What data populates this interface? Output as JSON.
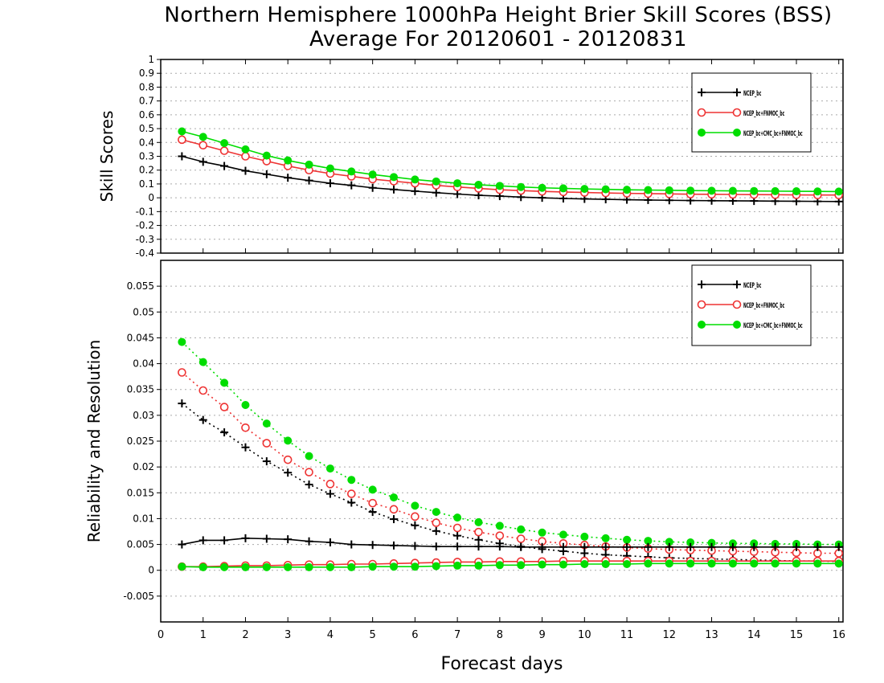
{
  "title_line1": "Northern Hemisphere 1000hPa Height Brier Skill Scores (BSS)",
  "title_line2": "Average For 20120601 - 20120831",
  "colors": {
    "ens1": "#000000",
    "ens2": "#ee3333",
    "ens3": "#00dd00",
    "grid": "#aaaaaa",
    "frame": "#000000"
  },
  "chart_data": [
    {
      "type": "line",
      "ylabel": "Skill Scores",
      "ylim": [
        -0.4,
        1
      ],
      "yticks": [
        "-0.4",
        "-0.3",
        "-0.2",
        "-0.1",
        "0",
        "0.1",
        "0.2",
        "0.3",
        "0.4",
        "0.5",
        "0.6",
        "0.7",
        "0.8",
        "0.9",
        "1"
      ],
      "xlim": [
        0,
        16.1
      ],
      "grid": true,
      "legend_position": "top-right",
      "legend_labels": [
        "NCEP_bc",
        "NCEP_bc+FNMOC_bc",
        "NCEP_bc+CMC_bc+FNMOC_bc"
      ],
      "x": [
        0.5,
        1,
        1.5,
        2,
        2.5,
        3,
        3.5,
        4,
        4.5,
        5,
        5.5,
        6,
        6.5,
        7,
        7.5,
        8,
        8.5,
        9,
        9.5,
        10,
        10.5,
        11,
        11.5,
        12,
        12.5,
        13,
        13.5,
        14,
        14.5,
        15,
        15.5,
        16
      ],
      "series": [
        {
          "values": [
            0.3,
            0.26,
            0.23,
            0.195,
            0.17,
            0.145,
            0.125,
            0.105,
            0.09,
            0.072,
            0.06,
            0.048,
            0.037,
            0.027,
            0.018,
            0.012,
            0.005,
            0.0,
            -0.005,
            -0.008,
            -0.011,
            -0.014,
            -0.016,
            -0.018,
            -0.02,
            -0.021,
            -0.022,
            -0.023,
            -0.024,
            -0.025,
            -0.026,
            -0.027
          ]
        },
        {
          "values": [
            0.42,
            0.38,
            0.34,
            0.3,
            0.265,
            0.23,
            0.2,
            0.175,
            0.155,
            0.135,
            0.12,
            0.105,
            0.09,
            0.078,
            0.068,
            0.058,
            0.052,
            0.046,
            0.042,
            0.038,
            0.035,
            0.032,
            0.03,
            0.028,
            0.026,
            0.025,
            0.024,
            0.023,
            0.022,
            0.021,
            0.02,
            0.02
          ]
        },
        {
          "values": [
            0.48,
            0.44,
            0.395,
            0.35,
            0.305,
            0.27,
            0.24,
            0.212,
            0.19,
            0.168,
            0.15,
            0.132,
            0.118,
            0.105,
            0.094,
            0.086,
            0.078,
            0.072,
            0.068,
            0.064,
            0.061,
            0.058,
            0.056,
            0.054,
            0.052,
            0.051,
            0.05,
            0.049,
            0.048,
            0.047,
            0.046,
            0.045
          ]
        }
      ]
    },
    {
      "type": "line",
      "ylabel": "Reliability and Resolution",
      "xlabel": "Forecast days",
      "ylim": [
        -0.01,
        0.06
      ],
      "yticks": [
        "-0.005",
        "0",
        "0.005",
        "0.01",
        "0.015",
        "0.02",
        "0.025",
        "0.03",
        "0.035",
        "0.04",
        "0.045",
        "0.05",
        "0.055"
      ],
      "xlim": [
        0,
        16.1
      ],
      "xticks": [
        "0",
        "1",
        "2",
        "3",
        "4",
        "5",
        "6",
        "7",
        "8",
        "9",
        "10",
        "11",
        "12",
        "13",
        "14",
        "15",
        "16"
      ],
      "grid": true,
      "legend_position": "top-right",
      "legend_labels": [
        "NCEP_bc",
        "NCEP_bc+FNMOC_bc",
        "NCEP_bc+CMC_bc+FNMOC_bc"
      ],
      "x": [
        0.5,
        1,
        1.5,
        2,
        2.5,
        3,
        3.5,
        4,
        4.5,
        5,
        5.5,
        6,
        6.5,
        7,
        7.5,
        8,
        8.5,
        9,
        9.5,
        10,
        10.5,
        11,
        11.5,
        12,
        12.5,
        13,
        13.5,
        14,
        14.5,
        15,
        15.5,
        16
      ],
      "series": [
        {
          "values": [
            0.0323,
            0.0291,
            0.0267,
            0.0238,
            0.0211,
            0.0189,
            0.0166,
            0.0148,
            0.0131,
            0.0113,
            0.0099,
            0.0087,
            0.0076,
            0.0067,
            0.0059,
            0.0052,
            0.0046,
            0.0041,
            0.0037,
            0.0033,
            0.003,
            0.0028,
            0.0026,
            0.0024,
            0.0023,
            0.0022,
            0.0021,
            0.002,
            0.0019,
            0.0018,
            0.0018,
            0.0017
          ]
        },
        {
          "values": [
            0.0383,
            0.0348,
            0.0316,
            0.0276,
            0.0246,
            0.0214,
            0.019,
            0.0167,
            0.0148,
            0.013,
            0.0118,
            0.0104,
            0.0092,
            0.0082,
            0.0074,
            0.0067,
            0.0061,
            0.0056,
            0.0052,
            0.0049,
            0.0046,
            0.0044,
            0.0042,
            0.004,
            0.0039,
            0.0038,
            0.0037,
            0.0036,
            0.0035,
            0.0034,
            0.0033,
            0.0033
          ]
        },
        {
          "values": [
            0.0442,
            0.0403,
            0.0363,
            0.032,
            0.0284,
            0.0251,
            0.0221,
            0.0197,
            0.0175,
            0.0156,
            0.0141,
            0.0125,
            0.0113,
            0.0102,
            0.0093,
            0.0086,
            0.0079,
            0.0073,
            0.0069,
            0.0065,
            0.0062,
            0.0059,
            0.0057,
            0.0055,
            0.0054,
            0.0053,
            0.0052,
            0.0052,
            0.0051,
            0.0051,
            0.005,
            0.005
          ]
        },
        {
          "values": [
            0.005,
            0.0058,
            0.0058,
            0.0062,
            0.0061,
            0.006,
            0.0056,
            0.0054,
            0.005,
            0.0049,
            0.0048,
            0.0047,
            0.0046,
            0.0046,
            0.0046,
            0.0046,
            0.0045,
            0.0045,
            0.0045,
            0.0045,
            0.0045,
            0.0045,
            0.0045,
            0.0045,
            0.0045,
            0.0045,
            0.0045,
            0.0045,
            0.0045,
            0.0045,
            0.0045,
            0.0045
          ]
        },
        {
          "values": [
            0.0007,
            0.0007,
            0.0008,
            0.0009,
            0.0009,
            0.001,
            0.0011,
            0.0011,
            0.0012,
            0.0012,
            0.0013,
            0.0014,
            0.0015,
            0.0016,
            0.0016,
            0.0017,
            0.0017,
            0.0017,
            0.0018,
            0.0018,
            0.0018,
            0.0018,
            0.0018,
            0.0018,
            0.0018,
            0.0018,
            0.0018,
            0.0018,
            0.0018,
            0.0018,
            0.0018,
            0.0018
          ]
        },
        {
          "values": [
            0.0007,
            0.0006,
            0.0006,
            0.0006,
            0.0006,
            0.0006,
            0.0006,
            0.0006,
            0.0006,
            0.0007,
            0.0007,
            0.0007,
            0.0008,
            0.0009,
            0.0009,
            0.001,
            0.001,
            0.0011,
            0.0011,
            0.0012,
            0.0012,
            0.0012,
            0.0013,
            0.0013,
            0.0013,
            0.0013,
            0.0013,
            0.0013,
            0.0013,
            0.0013,
            0.0013,
            0.0013
          ]
        }
      ]
    }
  ]
}
